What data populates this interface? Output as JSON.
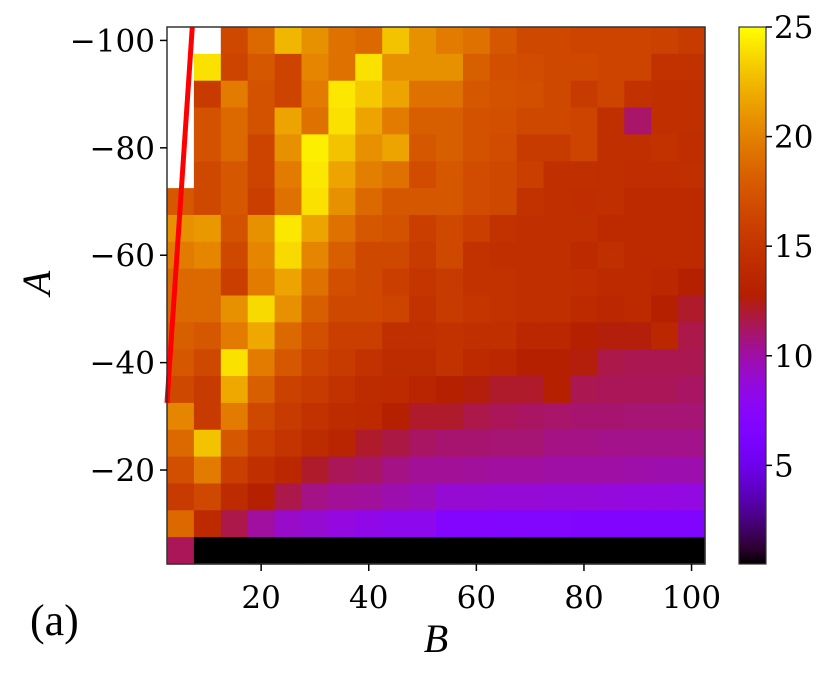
{
  "chart_data": {
    "type": "heatmap",
    "panel_label": "(a)",
    "xlabel": "B",
    "ylabel": "A",
    "x": [
      5,
      10,
      15,
      20,
      25,
      30,
      35,
      40,
      45,
      50,
      55,
      60,
      65,
      70,
      75,
      80,
      85,
      90,
      95,
      100
    ],
    "y": [
      -100,
      -95,
      -90,
      -85,
      -80,
      -75,
      -70,
      -65,
      -60,
      -55,
      -50,
      -45,
      -40,
      -35,
      -30,
      -25,
      -20,
      -15,
      -10,
      -5
    ],
    "xlim": [
      2.5,
      102.5
    ],
    "ylim": [
      -102.5,
      -2.5
    ],
    "y_inverted": true,
    "xticks": [
      20,
      40,
      60,
      80,
      100
    ],
    "yticks": [
      -100,
      -80,
      -60,
      -40,
      -20
    ],
    "xtick_labels": [
      "20",
      "40",
      "60",
      "80",
      "100"
    ],
    "ytick_labels": [
      "−100",
      "−80",
      "−60",
      "−40",
      "−20"
    ],
    "colormap": "gnuplot",
    "missing_color": "#ffffff",
    "colorbar": {
      "vmin": 0.5,
      "vmax": 25,
      "ticks": [
        5,
        10,
        15,
        20,
        25
      ],
      "tick_labels": [
        "5",
        "10",
        "15",
        "20",
        "25"
      ]
    },
    "values": [
      [
        null,
        null,
        16.6,
        18.7,
        22.4,
        20.8,
        19.2,
        18.7,
        22.9,
        20.8,
        19.7,
        19.2,
        17.6,
        16.6,
        16.6,
        16.3,
        16.3,
        16.3,
        16.0,
        15.5
      ],
      [
        null,
        24.0,
        16.3,
        17.6,
        16.3,
        20.2,
        19.2,
        24.0,
        20.8,
        20.8,
        20.8,
        18.1,
        17.1,
        16.9,
        16.6,
        16.6,
        16.3,
        16.3,
        14.7,
        14.7
      ],
      [
        null,
        15.5,
        19.7,
        17.3,
        16.3,
        19.7,
        24.2,
        23.1,
        21.6,
        19.2,
        19.2,
        17.6,
        17.3,
        17.1,
        16.6,
        15.5,
        16.3,
        14.7,
        14.4,
        14.4
      ],
      [
        null,
        17.3,
        18.7,
        17.3,
        21.6,
        19.2,
        24.0,
        21.6,
        19.7,
        18.1,
        18.1,
        17.3,
        17.1,
        16.6,
        16.6,
        16.3,
        14.4,
        11.1,
        14.4,
        14.4
      ],
      [
        null,
        17.3,
        18.7,
        16.3,
        20.8,
        24.5,
        22.9,
        20.8,
        21.6,
        17.6,
        18.1,
        17.3,
        16.9,
        15.5,
        15.5,
        16.3,
        14.4,
        14.4,
        14.7,
        14.2
      ],
      [
        null,
        16.6,
        17.6,
        16.3,
        19.7,
        24.2,
        21.6,
        19.9,
        19.2,
        16.9,
        17.6,
        16.9,
        16.6,
        15.8,
        14.4,
        14.4,
        14.4,
        14.2,
        14.2,
        14.4
      ],
      [
        17.6,
        16.6,
        17.6,
        15.8,
        19.2,
        24.0,
        20.8,
        18.7,
        17.6,
        17.6,
        17.6,
        16.9,
        16.6,
        14.7,
        14.4,
        14.2,
        14.4,
        13.9,
        13.9,
        13.9
      ],
      [
        20.8,
        21.1,
        17.3,
        20.8,
        24.2,
        21.6,
        19.2,
        17.6,
        17.3,
        15.8,
        16.6,
        15.8,
        14.7,
        14.4,
        14.4,
        14.4,
        13.9,
        13.9,
        13.9,
        13.9
      ],
      [
        19.7,
        20.2,
        16.6,
        20.2,
        23.7,
        20.2,
        18.1,
        16.6,
        16.6,
        15.5,
        16.6,
        14.7,
        14.4,
        14.4,
        14.4,
        13.9,
        14.4,
        13.9,
        13.9,
        13.9
      ],
      [
        18.7,
        18.7,
        15.8,
        19.7,
        21.6,
        19.2,
        17.1,
        16.6,
        15.8,
        15.0,
        15.5,
        14.7,
        14.7,
        14.4,
        14.4,
        14.2,
        13.9,
        13.9,
        13.7,
        12.9
      ],
      [
        18.7,
        18.7,
        20.8,
        23.7,
        20.8,
        18.1,
        16.6,
        16.6,
        16.3,
        14.7,
        15.5,
        15.0,
        14.7,
        14.4,
        14.4,
        13.9,
        13.6,
        13.9,
        12.9,
        12.1
      ],
      [
        18.1,
        17.6,
        19.7,
        21.8,
        18.7,
        17.1,
        15.8,
        15.8,
        14.4,
        14.4,
        14.7,
        14.4,
        14.4,
        13.7,
        13.7,
        12.9,
        12.6,
        12.6,
        13.7,
        11.6
      ],
      [
        17.6,
        16.6,
        24.0,
        19.7,
        17.6,
        16.3,
        15.5,
        14.7,
        14.0,
        14.0,
        14.7,
        13.9,
        13.7,
        12.9,
        12.9,
        12.6,
        11.6,
        11.5,
        11.5,
        11.5
      ],
      [
        16.6,
        15.5,
        21.8,
        18.1,
        16.0,
        15.5,
        14.7,
        14.0,
        13.9,
        13.4,
        12.9,
        12.6,
        12.1,
        12.1,
        12.9,
        11.5,
        11.4,
        11.4,
        11.4,
        11.2
      ],
      [
        20.2,
        15.5,
        19.7,
        16.6,
        15.5,
        14.7,
        14.0,
        13.9,
        12.9,
        12.1,
        12.1,
        11.6,
        11.4,
        11.2,
        11.1,
        11.0,
        11.0,
        10.9,
        10.9,
        10.9
      ],
      [
        18.7,
        22.9,
        17.6,
        15.8,
        14.9,
        14.0,
        13.4,
        12.1,
        11.7,
        11.2,
        11.0,
        11.0,
        10.9,
        10.9,
        10.6,
        10.6,
        10.5,
        10.5,
        10.5,
        10.5
      ],
      [
        17.1,
        19.7,
        15.8,
        14.4,
        13.7,
        12.1,
        11.4,
        11.2,
        10.6,
        10.3,
        10.3,
        10.2,
        10.1,
        10.1,
        10.0,
        10.0,
        10.0,
        9.9,
        9.8,
        9.8
      ],
      [
        15.5,
        16.6,
        14.0,
        12.9,
        11.6,
        10.6,
        10.3,
        10.2,
        9.8,
        9.6,
        9.0,
        9.0,
        8.9,
        8.9,
        8.8,
        8.8,
        8.7,
        8.6,
        8.6,
        8.5
      ],
      [
        18.7,
        13.9,
        11.6,
        10.1,
        9.2,
        9.0,
        8.6,
        8.3,
        8.1,
        8.1,
        7.0,
        7.0,
        6.9,
        6.9,
        6.9,
        6.8,
        6.8,
        6.8,
        6.8,
        6.8
      ],
      [
        11.4,
        0.5,
        0.5,
        0.5,
        0.5,
        0.5,
        0.5,
        0.5,
        0.5,
        0.5,
        0.5,
        0.5,
        0.5,
        0.5,
        0.5,
        0.5,
        0.5,
        0.5,
        0.5,
        0.5
      ]
    ],
    "overlay_line": {
      "color": "#ff0000",
      "points": [
        [
          2.5,
          -32.5
        ],
        [
          7.2,
          -102.5
        ]
      ]
    }
  }
}
